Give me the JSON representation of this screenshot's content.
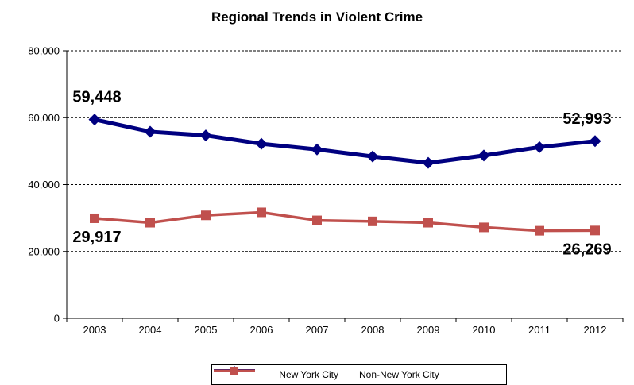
{
  "chart_data": {
    "type": "line",
    "title": "Regional Trends in Violent Crime",
    "xlabel": "",
    "ylabel": "",
    "categories": [
      "2003",
      "2004",
      "2005",
      "2006",
      "2007",
      "2008",
      "2009",
      "2010",
      "2011",
      "2012"
    ],
    "ylim": [
      0,
      80000
    ],
    "yticks": [
      0,
      20000,
      40000,
      60000,
      80000
    ],
    "ytick_labels": [
      "0",
      "20,000",
      "40,000",
      "60,000",
      "80,000"
    ],
    "grid": "dashed horizontal",
    "legend_position": "bottom",
    "series": [
      {
        "name": "New York City",
        "color": "#000080",
        "marker": "diamond",
        "values": [
          59448,
          55800,
          54700,
          52200,
          50500,
          48400,
          46500,
          48700,
          51200,
          52993
        ]
      },
      {
        "name": "Non-New York City",
        "color": "#C0504D",
        "marker": "square",
        "values": [
          29917,
          28600,
          30800,
          31700,
          29300,
          29000,
          28600,
          27200,
          26200,
          26269
        ]
      }
    ],
    "annotations": [
      {
        "text": "59,448",
        "series": 0,
        "index": 0,
        "position": "above"
      },
      {
        "text": "52,993",
        "series": 0,
        "index": 9,
        "position": "above"
      },
      {
        "text": "29,917",
        "series": 1,
        "index": 0,
        "position": "below"
      },
      {
        "text": "26,269",
        "series": 1,
        "index": 9,
        "position": "below"
      }
    ]
  }
}
